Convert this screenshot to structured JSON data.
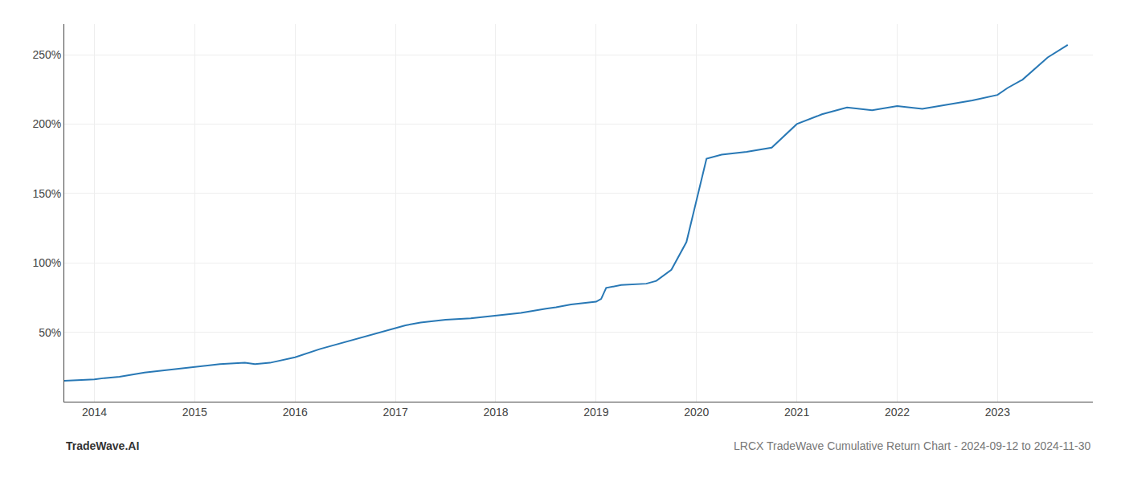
{
  "chart_data": {
    "type": "line",
    "x": [
      2013.7,
      2014.0,
      2014.1,
      2014.25,
      2014.5,
      2014.75,
      2015.0,
      2015.1,
      2015.25,
      2015.5,
      2015.6,
      2015.75,
      2016.0,
      2016.25,
      2016.5,
      2016.75,
      2017.0,
      2017.1,
      2017.25,
      2017.5,
      2017.75,
      2018.0,
      2018.1,
      2018.25,
      2018.5,
      2018.6,
      2018.75,
      2019.0,
      2019.05,
      2019.1,
      2019.25,
      2019.5,
      2019.6,
      2019.75,
      2019.9,
      2020.0,
      2020.05,
      2020.1,
      2020.25,
      2020.5,
      2020.75,
      2021.0,
      2021.25,
      2021.5,
      2021.75,
      2022.0,
      2022.25,
      2022.5,
      2022.75,
      2023.0,
      2023.1,
      2023.25,
      2023.5,
      2023.7
    ],
    "values": [
      15,
      16,
      17,
      18,
      21,
      23,
      25,
      26,
      27,
      28,
      27,
      28,
      32,
      38,
      43,
      48,
      53,
      55,
      57,
      59,
      60,
      62,
      63,
      64,
      67,
      68,
      70,
      72,
      74,
      82,
      84,
      85,
      87,
      95,
      115,
      145,
      160,
      175,
      178,
      180,
      183,
      200,
      207,
      212,
      210,
      213,
      211,
      214,
      217,
      221,
      226,
      232,
      248,
      257
    ],
    "color": "#2878b5",
    "xlim": [
      2013.7,
      2023.95
    ],
    "ylim": [
      0,
      272
    ],
    "xticks": [
      2014,
      2015,
      2016,
      2017,
      2018,
      2019,
      2020,
      2021,
      2022,
      2023
    ],
    "yticks": [
      {
        "value": 50,
        "label": "50%"
      },
      {
        "value": 100,
        "label": "100%"
      },
      {
        "value": 150,
        "label": "150%"
      },
      {
        "value": 200,
        "label": "200%"
      },
      {
        "value": 250,
        "label": "250%"
      }
    ],
    "grid": true,
    "annotations": [
      "TradeWave.AI",
      "LRCX TradeWave Cumulative Return Chart - 2024-09-12 to 2024-11-30"
    ]
  }
}
